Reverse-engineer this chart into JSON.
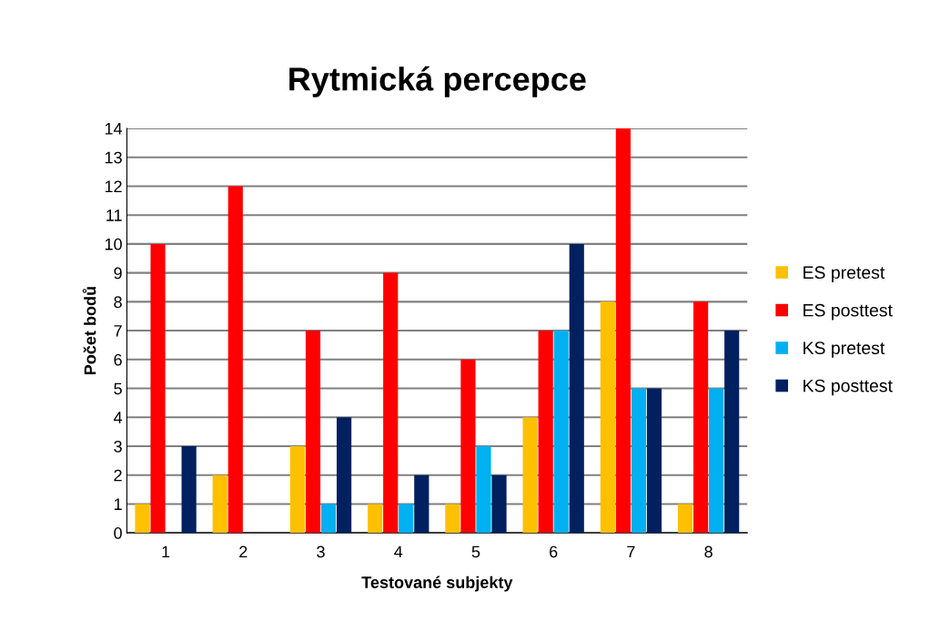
{
  "chart_data": {
    "type": "bar",
    "title": "Rytmická percepce",
    "xlabel": "Testované subjekty",
    "ylabel": "Počet bodů",
    "categories": [
      "1",
      "2",
      "3",
      "4",
      "5",
      "6",
      "7",
      "8"
    ],
    "series": [
      {
        "name": "ES pretest",
        "color": "#ffc000",
        "values": [
          1,
          2,
          3,
          1,
          1,
          4,
          8,
          1
        ]
      },
      {
        "name": "ES posttest",
        "color": "#ff0000",
        "values": [
          10,
          12,
          7,
          9,
          6,
          7,
          14,
          8
        ]
      },
      {
        "name": "KS pretest",
        "color": "#00b0f0",
        "values": [
          0,
          0,
          1,
          1,
          3,
          7,
          5,
          5
        ]
      },
      {
        "name": "KS posttest",
        "color": "#002060",
        "values": [
          3,
          0,
          4,
          2,
          2,
          10,
          5,
          7
        ]
      }
    ],
    "ylim": [
      0,
      14
    ],
    "yticks": [
      0,
      1,
      2,
      3,
      4,
      5,
      6,
      7,
      8,
      9,
      10,
      11,
      12,
      13,
      14
    ],
    "grid": "y",
    "legend": "right"
  }
}
